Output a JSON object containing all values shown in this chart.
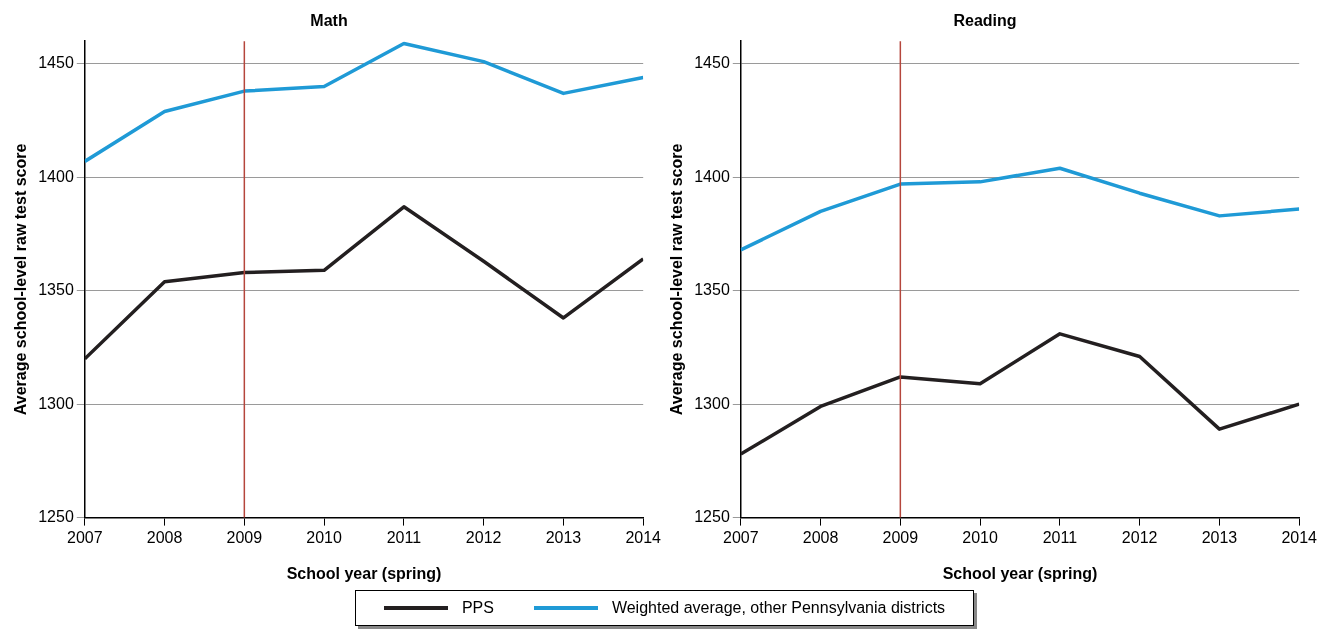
{
  "chart_data": [
    {
      "type": "line",
      "title": "Math",
      "xlabel": "School year (spring)",
      "ylabel": "Average school-level raw test score",
      "x": [
        2007,
        2008,
        2009,
        2010,
        2011,
        2012,
        2013,
        2014
      ],
      "series": [
        {
          "name": "PPS",
          "color": "#231f20",
          "values": [
            1320,
            1354,
            1358,
            1359,
            1387,
            1363,
            1338,
            1364
          ]
        },
        {
          "name": "Weighted average, other Pennsylvania districts",
          "color": "#1f9ad6",
          "values": [
            1407,
            1429,
            1438,
            1440,
            1459,
            1451,
            1437,
            1444
          ]
        }
      ],
      "xlim": [
        2007,
        2014
      ],
      "xticks": [
        2007,
        2008,
        2009,
        2010,
        2011,
        2012,
        2013,
        2014
      ],
      "ylim": [
        1250,
        1460
      ],
      "yticks": [
        1250,
        1300,
        1350,
        1400,
        1450
      ],
      "grid": "y",
      "legend": "bottom",
      "marker": "none",
      "ref_lines": [
        {
          "axis": "x",
          "value": 2009,
          "color": "#b5463c"
        }
      ]
    },
    {
      "type": "line",
      "title": "Reading",
      "xlabel": "School year (spring)",
      "ylabel": "Average school-level raw test score",
      "x": [
        2007,
        2008,
        2009,
        2010,
        2011,
        2012,
        2013,
        2014
      ],
      "series": [
        {
          "color": "#231f20",
          "values": [
            1278,
            1299,
            1312,
            1309,
            1331,
            1321,
            1289,
            1300
          ]
        },
        {
          "color": "#1f9ad6",
          "values": [
            1368,
            1385,
            1397,
            1398,
            1404,
            1393,
            1383,
            1386
          ]
        }
      ],
      "xlim": [
        2007,
        2014
      ],
      "xticks": [
        2007,
        2008,
        2009,
        2010,
        2011,
        2012,
        2013,
        2014
      ],
      "ylim": [
        1250,
        1460
      ],
      "yticks": [
        1250,
        1300,
        1350,
        1400,
        1450
      ],
      "grid": "y",
      "marker": "none",
      "ref_lines": [
        {
          "axis": "x",
          "value": 2009,
          "color": "#b5463c"
        }
      ]
    }
  ]
}
